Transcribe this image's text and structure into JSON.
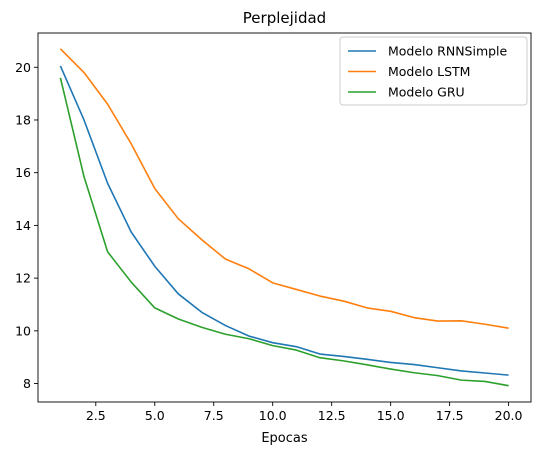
{
  "chart_data": {
    "type": "line",
    "title": "Perplejidad",
    "xlabel": "Epocas",
    "ylabel": "",
    "xlim": [
      0.05,
      20.95
    ],
    "ylim": [
      7.3,
      21.3
    ],
    "xticks": [
      2.5,
      5.0,
      7.5,
      10.0,
      12.5,
      15.0,
      17.5,
      20.0
    ],
    "xtick_labels": [
      "2.5",
      "5.0",
      "7.5",
      "10.0",
      "12.5",
      "15.0",
      "17.5",
      "20.0"
    ],
    "yticks": [
      8,
      10,
      12,
      14,
      16,
      18,
      20
    ],
    "ytick_labels": [
      "8",
      "10",
      "12",
      "14",
      "16",
      "18",
      "20"
    ],
    "grid": false,
    "legend_position": "top-right",
    "x": [
      1,
      2,
      3,
      4,
      5,
      6,
      7,
      8,
      9,
      10,
      11,
      12,
      13,
      14,
      15,
      16,
      17,
      18,
      19,
      20
    ],
    "series": [
      {
        "name": "Modelo RNNSimple",
        "color": "#1f77b4",
        "values": [
          20.05,
          18.0,
          15.6,
          13.75,
          12.45,
          11.4,
          10.7,
          10.2,
          9.8,
          9.55,
          9.4,
          9.12,
          9.03,
          8.92,
          8.8,
          8.72,
          8.6,
          8.48,
          8.4,
          8.32
        ]
      },
      {
        "name": "Modelo LSTM",
        "color": "#ff7f0e",
        "values": [
          20.7,
          19.8,
          18.6,
          17.1,
          15.4,
          14.25,
          13.45,
          12.72,
          12.35,
          11.82,
          11.57,
          11.32,
          11.13,
          10.87,
          10.74,
          10.5,
          10.37,
          10.38,
          10.25,
          10.1
        ]
      },
      {
        "name": "Modelo GRU",
        "color": "#2ca02c",
        "values": [
          19.6,
          15.85,
          13.0,
          11.85,
          10.87,
          10.45,
          10.13,
          9.87,
          9.7,
          9.44,
          9.27,
          8.98,
          8.86,
          8.71,
          8.55,
          8.41,
          8.3,
          8.13,
          8.08,
          7.92
        ]
      }
    ]
  }
}
